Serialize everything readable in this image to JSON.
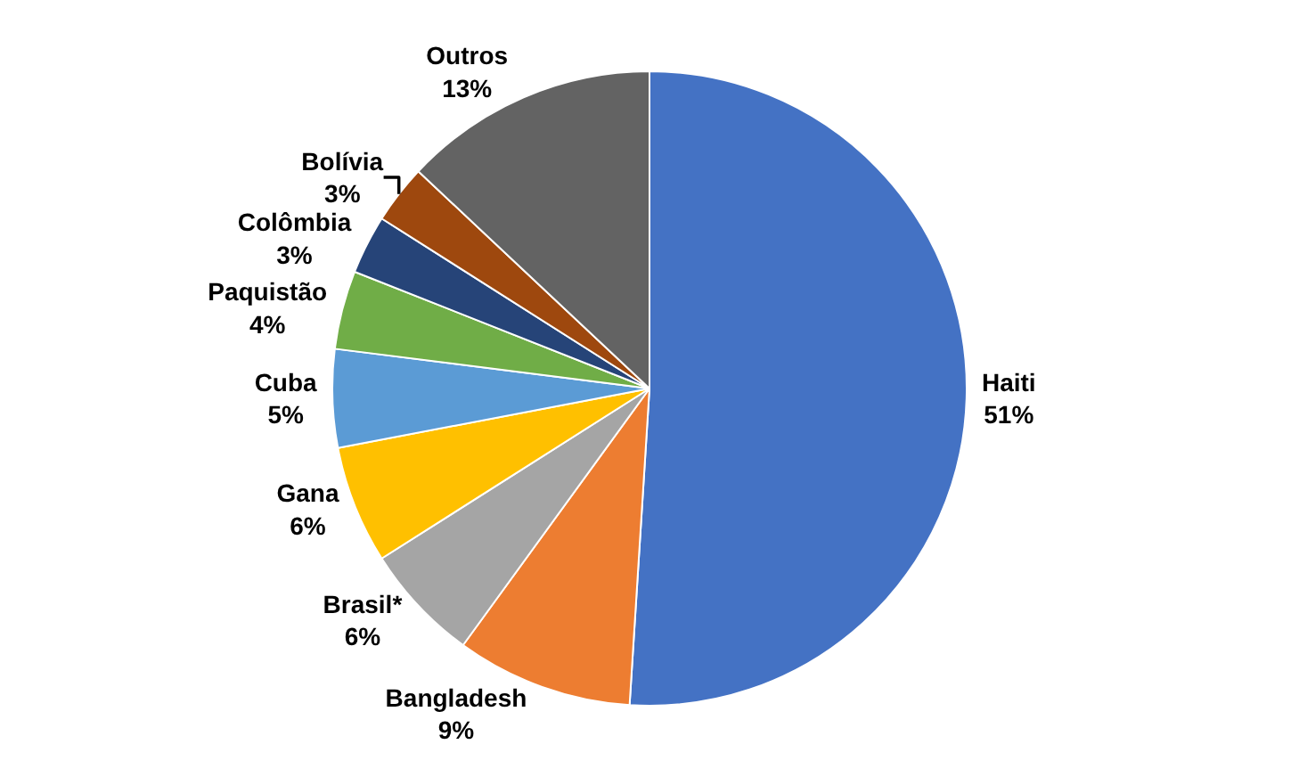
{
  "chart_data": {
    "type": "pie",
    "categories": [
      "Haiti",
      "Bangladesh",
      "Brasil*",
      "Gana",
      "Cuba",
      "Paquistão",
      "Colômbia",
      "Bolívia",
      "Outros"
    ],
    "values": [
      51,
      9,
      6,
      6,
      5,
      4,
      3,
      3,
      13
    ],
    "value_labels": [
      "51%",
      "9%",
      "6%",
      "6%",
      "5%",
      "4%",
      "3%",
      "3%",
      "13%"
    ],
    "colors": [
      "#4472c4",
      "#ed7d31",
      "#a5a5a5",
      "#ffc000",
      "#5b9bd5",
      "#70ad47",
      "#264478",
      "#9e480e",
      "#636363"
    ],
    "legend": false
  }
}
